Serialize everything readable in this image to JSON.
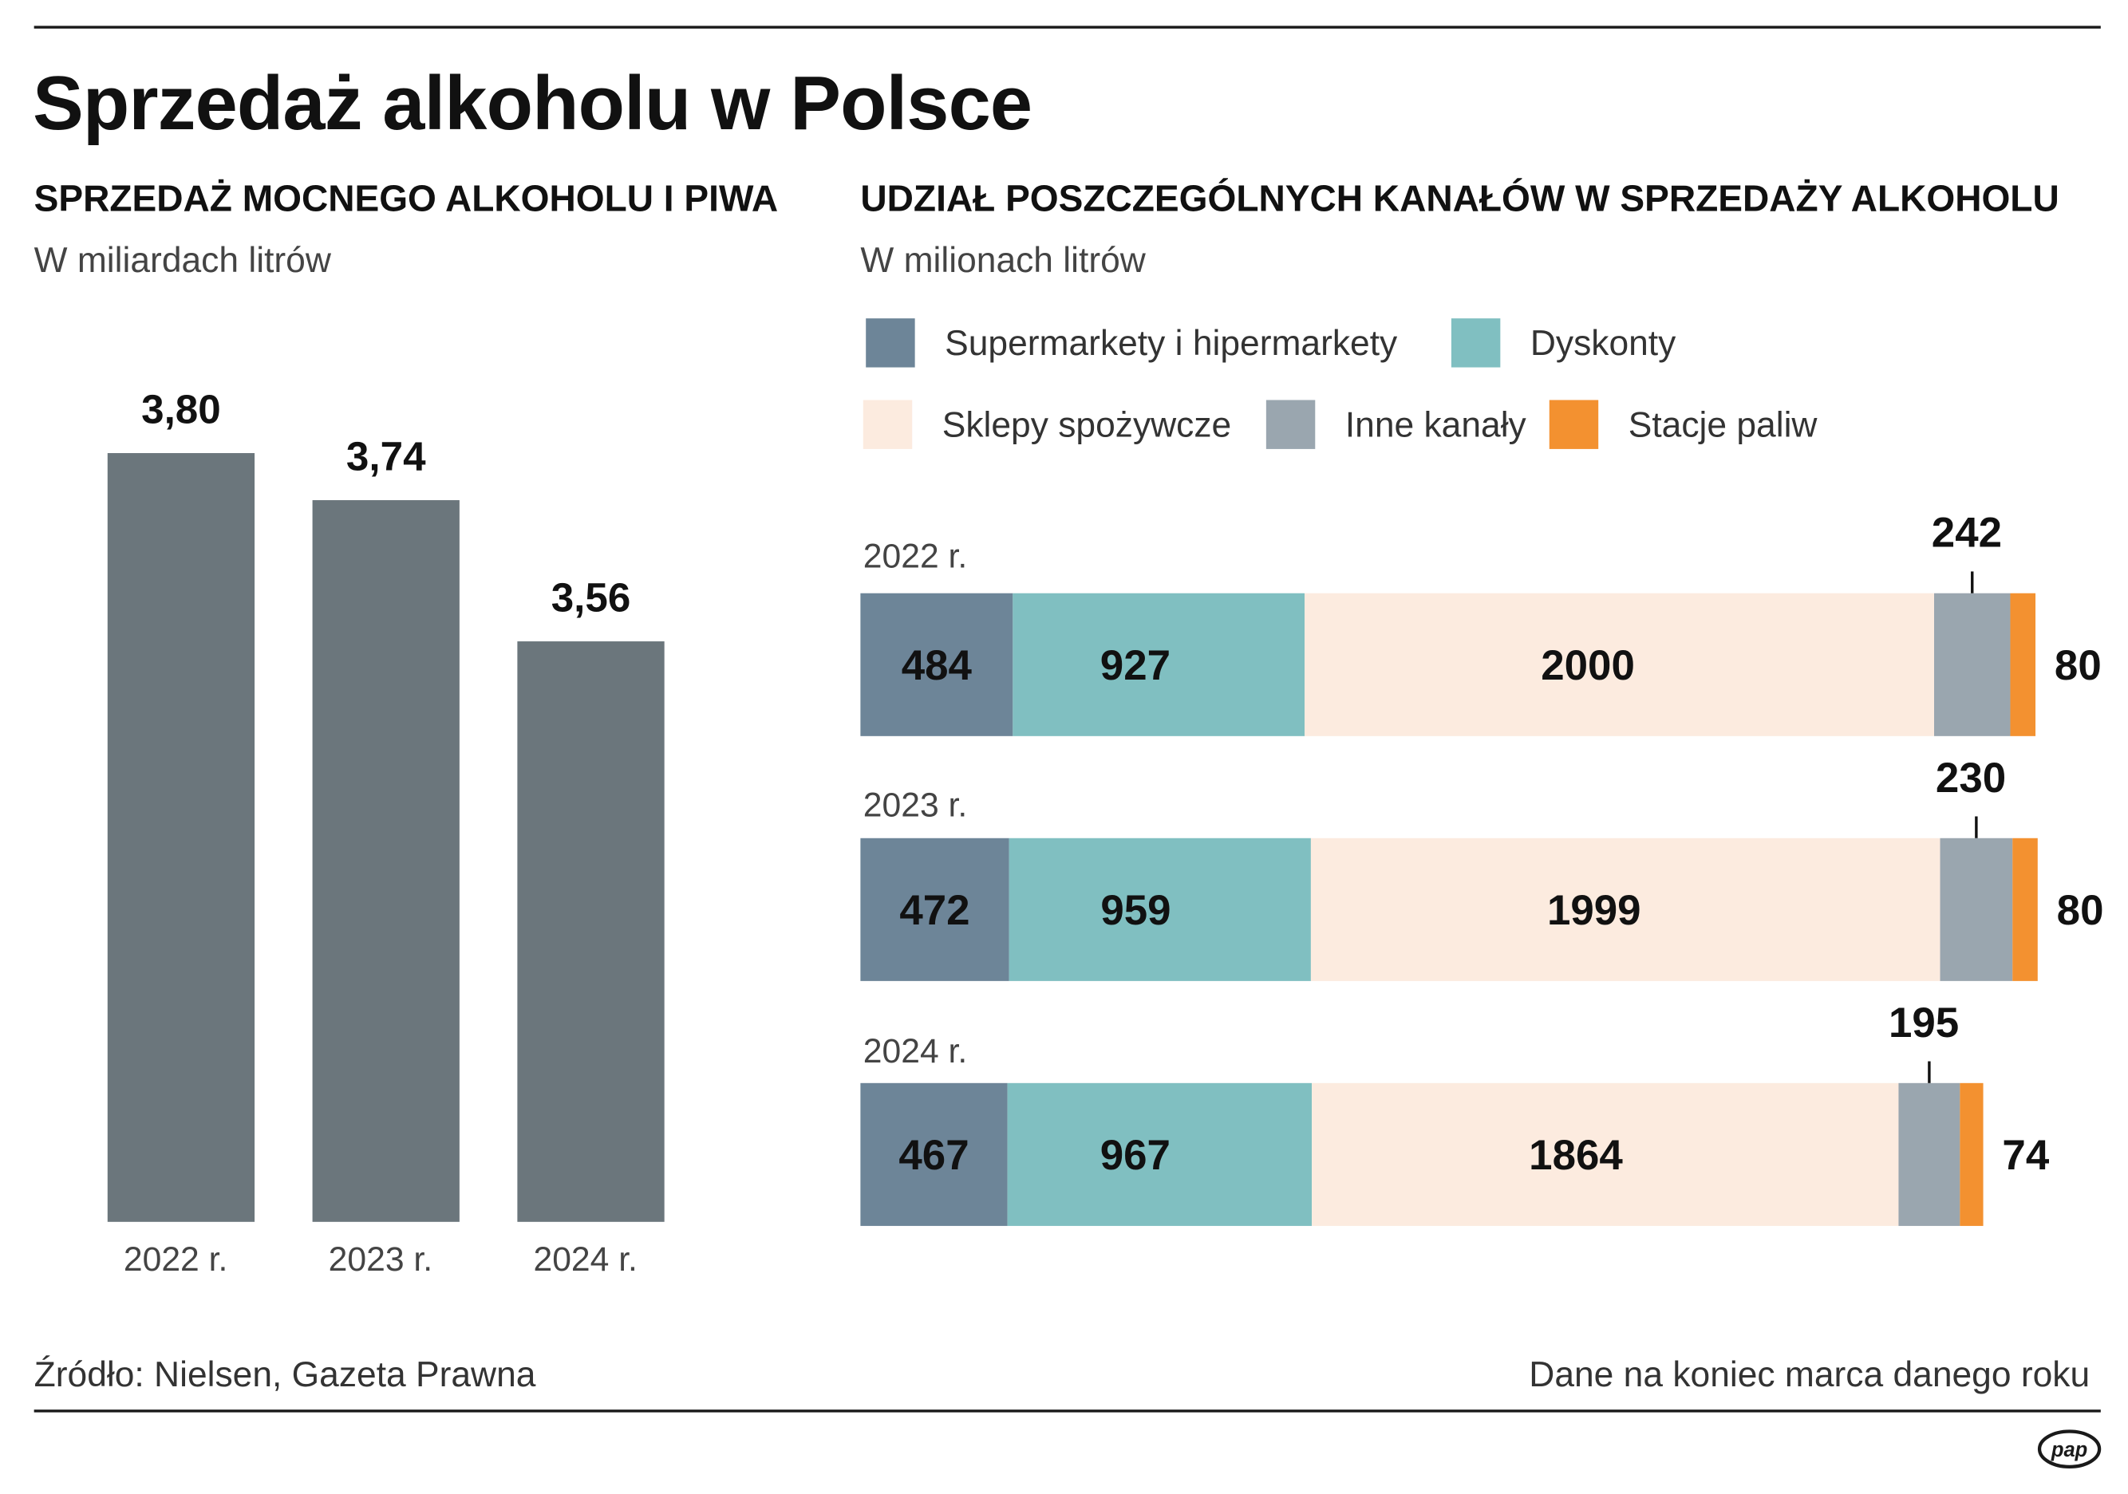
{
  "header": {
    "title": "Sprzedaż alkoholu w Polsce"
  },
  "left_panel": {
    "heading": "SPRZEDAŻ MOCNEGO ALKOHOLU I PIWA",
    "unit": "W miliardach litrów"
  },
  "right_panel": {
    "heading": "UDZIAŁ POSZCZEGÓLNYCH KANAŁÓW  W SPRZEDAŻY ALKOHOLU",
    "unit": "W milionach litrów",
    "legend": [
      {
        "label": "Supermarkety i hipermarkety",
        "color": "#6d8598"
      },
      {
        "label": "Dyskonty",
        "color": "#80bfc1"
      },
      {
        "label": "Sklepy spożywcze",
        "color": "#fcebdf"
      },
      {
        "label": "Inne kanały",
        "color": "#9aa6af"
      },
      {
        "label": "Stacje paliw",
        "color": "#f39130"
      }
    ]
  },
  "footer": {
    "source": "Źródło: Nielsen, Gazeta Prawna",
    "note": "Dane na koniec marca danego roku"
  },
  "logo": {
    "text": "pap"
  },
  "colors": {
    "bar": "#6b767c",
    "text": "#111111",
    "muted": "#444444",
    "rule": "#1a1a1a"
  },
  "chart_data": [
    {
      "type": "bar",
      "title": "SPRZEDAŻ MOCNEGO ALKOHOLU I PIWA",
      "ylabel": "W miliardach litrów",
      "xlabel": "",
      "categories": [
        "2022 r.",
        "2023 r.",
        "2024 r."
      ],
      "values": [
        3.8,
        3.74,
        3.56
      ],
      "value_labels": [
        "3,80",
        "3,74",
        "3,56"
      ],
      "baseline": 2.82,
      "ylim": [
        2.82,
        3.8
      ],
      "grid": false
    },
    {
      "type": "bar",
      "orientation": "horizontal",
      "stacked": true,
      "title": "UDZIAŁ POSZCZEGÓLNYCH KANAŁÓW  W SPRZEDAŻY ALKOHOLU",
      "xlabel": "W milionach litrów",
      "categories": [
        "2022 r.",
        "2023 r.",
        "2024 r."
      ],
      "series": [
        {
          "name": "Supermarkety i hipermarkety",
          "values": [
            484,
            472,
            467
          ]
        },
        {
          "name": "Dyskonty",
          "values": [
            927,
            959,
            967
          ]
        },
        {
          "name": "Sklepy spożywcze",
          "values": [
            2000,
            1999,
            1864
          ]
        },
        {
          "name": "Inne kanały",
          "values": [
            242,
            230,
            195
          ]
        },
        {
          "name": "Stacje paliw",
          "values": [
            80,
            80,
            74
          ]
        }
      ],
      "legend": "top"
    }
  ]
}
